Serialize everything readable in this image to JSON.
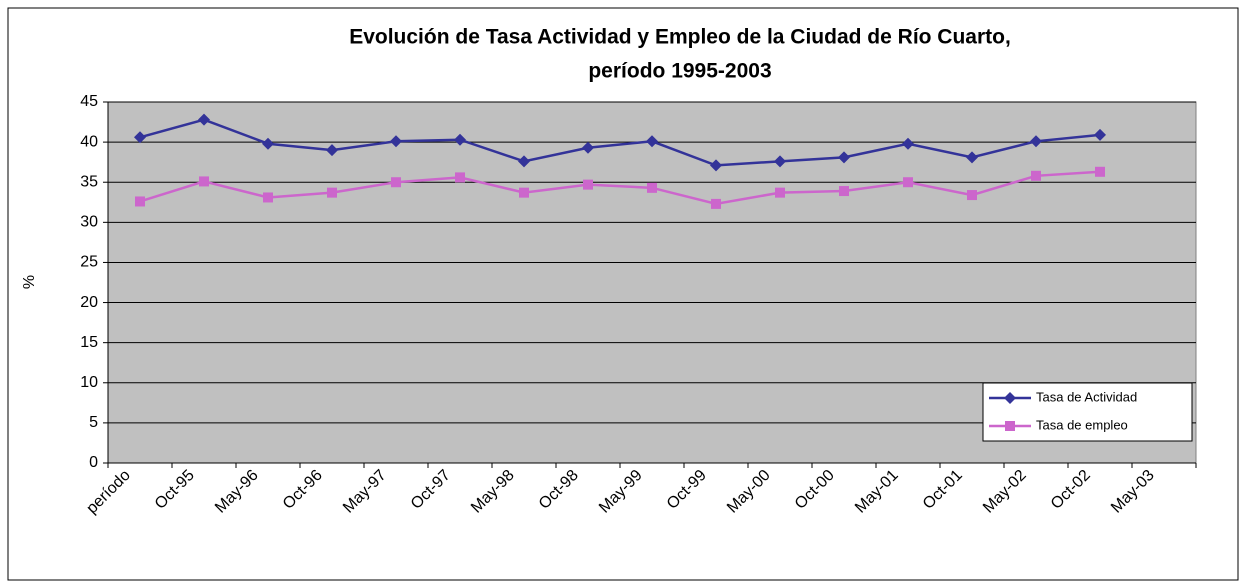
{
  "chart_data": {
    "type": "line",
    "title": [
      "Evolución de Tasa Actividad y Empleo de la Ciudad de Río Cuarto,",
      "período 1995-2003"
    ],
    "y_label": "%",
    "categories": [
      "período",
      "Oct-95",
      "May-96",
      "Oct-96",
      "May-97",
      "Oct-97",
      "May-98",
      "Oct-98",
      "May-99",
      "Oct-99",
      "May-00",
      "Oct-00",
      "May-01",
      "Oct-01",
      "May-02",
      "Oct-02",
      "May-03"
    ],
    "series": [
      {
        "name": "Tasa de Actividad",
        "color": "#333399",
        "marker": "diamond",
        "values": [
          40.6,
          42.8,
          39.8,
          39.0,
          40.1,
          40.3,
          37.6,
          39.3,
          40.1,
          37.1,
          37.6,
          38.1,
          39.8,
          38.1,
          40.1,
          40.9,
          null
        ]
      },
      {
        "name": "Tasa de empleo",
        "color": "#cc66cc",
        "marker": "square",
        "values": [
          32.6,
          35.1,
          33.1,
          33.7,
          35.0,
          35.6,
          33.7,
          34.7,
          34.3,
          32.3,
          33.7,
          33.9,
          35.0,
          33.4,
          35.8,
          36.3,
          null
        ]
      }
    ],
    "ylim": [
      0,
      45
    ],
    "yticks": [
      0,
      5,
      10,
      15,
      20,
      25,
      30,
      35,
      40,
      45
    ],
    "grid": true,
    "legend": "lower right",
    "plot_background": "#c0c0c0"
  }
}
